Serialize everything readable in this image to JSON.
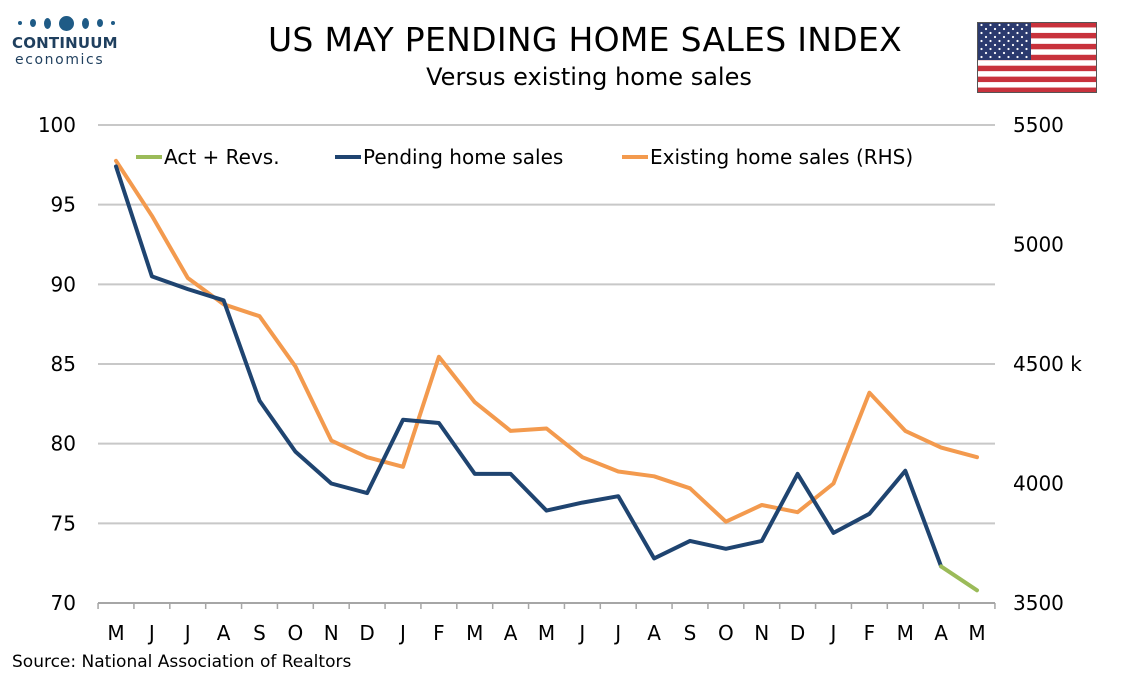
{
  "header": {
    "title": "US MAY PENDING HOME SALES INDEX",
    "subtitle": "Versus existing home sales"
  },
  "logo": {
    "name": "CONTINUUM",
    "sub": "economics",
    "color": "#1f5b86"
  },
  "flag_icon": "us-flag-icon",
  "source": "Source: National Association of Realtors",
  "colors": {
    "pending": "#1f4470",
    "existing": "#f39a4e",
    "act_revs": "#9bbb59",
    "grid": "#c8c8c8",
    "axis": "#a6a6a6"
  },
  "chart_data": {
    "type": "line",
    "title": "US MAY PENDING HOME SALES INDEX",
    "subtitle": "Versus existing home sales",
    "categories": [
      "M",
      "J",
      "J",
      "A",
      "S",
      "O",
      "N",
      "D",
      "J",
      "F",
      "M",
      "A",
      "M",
      "J",
      "J",
      "A",
      "S",
      "O",
      "N",
      "D",
      "J",
      "F",
      "M",
      "A",
      "M"
    ],
    "y_left": {
      "ylim": [
        70,
        100
      ],
      "ticks": [
        "70",
        "75",
        "80",
        "85",
        "90",
        "95",
        "100"
      ]
    },
    "y_right": {
      "ylim": [
        3500,
        5500
      ],
      "ticks": [
        "3500",
        "4000",
        "4500 k",
        "5000",
        "5500"
      ],
      "tick_values": [
        3500,
        4000,
        4500,
        5000,
        5500
      ]
    },
    "grid": true,
    "legend_position": "top",
    "series": [
      {
        "name": "Act + Revs.",
        "axis": "left",
        "color": "#9bbb59",
        "values": [
          null,
          null,
          null,
          null,
          null,
          null,
          null,
          null,
          null,
          null,
          null,
          null,
          null,
          null,
          null,
          null,
          null,
          null,
          null,
          null,
          null,
          null,
          null,
          72.3,
          70.8
        ]
      },
      {
        "name": "Pending home sales",
        "axis": "left",
        "color": "#1f4470",
        "values": [
          97.4,
          90.5,
          89.7,
          89.0,
          82.7,
          79.5,
          77.5,
          76.9,
          81.5,
          81.3,
          78.1,
          78.1,
          75.8,
          76.3,
          76.7,
          72.8,
          73.9,
          73.4,
          73.9,
          78.1,
          74.4,
          75.6,
          78.3,
          72.3,
          null
        ]
      },
      {
        "name": "Existing home sales (RHS)",
        "axis": "right",
        "color": "#f39a4e",
        "values": [
          5350,
          5120,
          4860,
          4750,
          4700,
          4490,
          4180,
          4110,
          4070,
          4530,
          4340,
          4220,
          4230,
          4110,
          4050,
          4030,
          3980,
          3840,
          3910,
          3880,
          4000,
          4380,
          4220,
          4150,
          4110
        ]
      }
    ]
  }
}
